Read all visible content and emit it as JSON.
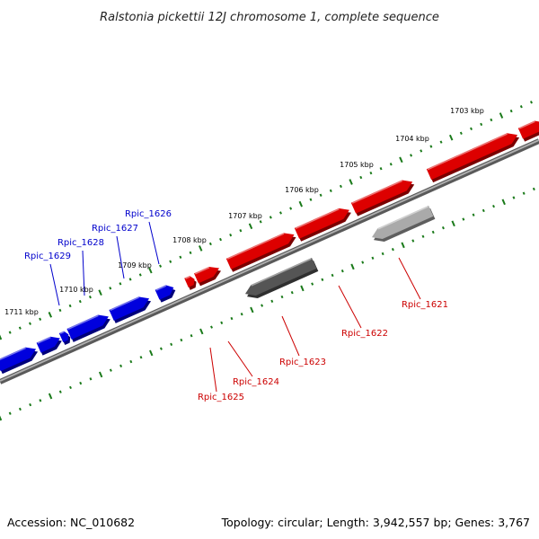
{
  "title": "Ralstonia pickettii 12J chromosome 1, complete sequence",
  "footer": {
    "accession": "Accession: NC_010682",
    "summary": "Topology: circular; Length: 3,942,557 bp; Genes: 3,767"
  },
  "scale_labels": [
    "1703 kbp",
    "1704 kbp",
    "1705 kbp",
    "1706 kbp",
    "1707 kbp",
    "1708 kbp",
    "1709 kbp",
    "1710 kbp",
    "1711 kbp"
  ],
  "genes": [
    {
      "id": "Rpic_1621",
      "strand": "minus",
      "color": "#aaaaaa"
    },
    {
      "id": "Rpic_1622",
      "strand": "plus",
      "color": "#dd0000"
    },
    {
      "id": "Rpic_1623",
      "strand": "minus",
      "color": "#555555"
    },
    {
      "id": "Rpic_1624",
      "strand": "plus",
      "color": "#dd0000"
    },
    {
      "id": "Rpic_1625",
      "strand": "plus",
      "color": "#dd0000"
    },
    {
      "id": "Rpic_1626",
      "strand": "plus",
      "color": "#0000dd"
    },
    {
      "id": "Rpic_1627",
      "strand": "plus",
      "color": "#0000dd"
    },
    {
      "id": "Rpic_1628",
      "strand": "plus",
      "color": "#0000dd"
    },
    {
      "id": "Rpic_1629",
      "strand": "plus",
      "color": "#0000dd"
    }
  ],
  "colors": {
    "forward_gene": "#dd0000",
    "reverse_gene": "#0000dd",
    "backbone": "#7a7a7a",
    "tick": "#1a7a1a",
    "label_red": "#cc0000",
    "label_blue": "#0000cc"
  }
}
